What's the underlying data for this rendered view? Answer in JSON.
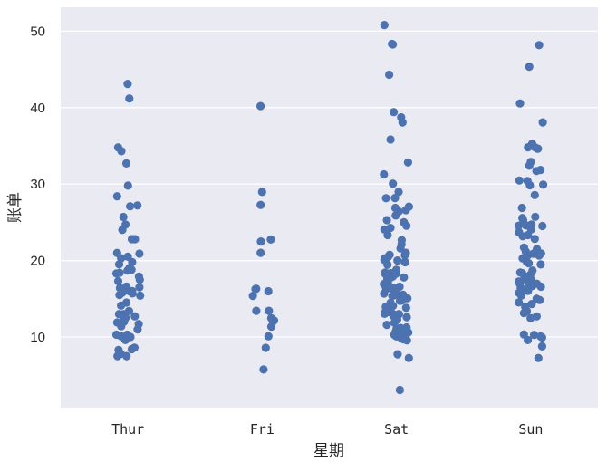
{
  "chart_data": {
    "type": "scatter",
    "subtype": "stripplot",
    "title": "",
    "xlabel": "星期",
    "ylabel": "账单",
    "categories": [
      "Thur",
      "Fri",
      "Sat",
      "Sun"
    ],
    "yticks": [
      10,
      20,
      30,
      40,
      50
    ],
    "ylim": [
      0.5,
      53.5
    ],
    "grid": true,
    "legend": null,
    "marker_color": "#4c72b0",
    "background_color": "#eaeaf2",
    "series": [
      {
        "name": "Thur",
        "values": [
          43.1,
          41.2,
          34.8,
          34.3,
          32.7,
          29.8,
          28.4,
          27.2,
          27.1,
          24.7,
          24.0,
          22.8,
          22.8,
          21.0,
          20.5,
          20.3,
          19.8,
          19.5,
          19.0,
          18.7,
          18.4,
          18.3,
          17.9,
          17.5,
          17.3,
          16.6,
          16.5,
          16.4,
          16.3,
          16.0,
          16.0,
          15.8,
          15.5,
          15.4,
          14.5,
          14.1,
          13.4,
          13.0,
          13.0,
          12.7,
          12.4,
          12.0,
          11.9,
          11.7,
          11.4,
          11.0,
          10.3,
          10.1,
          10.0,
          9.6,
          8.6,
          8.4,
          8.3,
          7.8,
          7.5,
          7.5,
          10.3,
          12.5,
          15.7,
          18.8,
          20.9,
          25.7
        ]
      },
      {
        "name": "Fri",
        "values": [
          40.2,
          28.97,
          27.28,
          22.75,
          22.49,
          21.01,
          16.32,
          16.27,
          15.98,
          15.38,
          13.42,
          13.42,
          12.46,
          12.16,
          12.03,
          11.35,
          10.09,
          8.58,
          5.75
        ]
      },
      {
        "name": "Sat",
        "values": [
          50.81,
          48.33,
          48.27,
          44.3,
          39.42,
          38.73,
          38.07,
          35.83,
          32.83,
          31.27,
          30.06,
          28.97,
          28.17,
          28.15,
          27.05,
          26.88,
          26.59,
          26.41,
          25.89,
          25.29,
          25.0,
          24.55,
          24.27,
          24.06,
          23.33,
          22.67,
          22.12,
          21.58,
          21.01,
          20.76,
          20.69,
          20.45,
          20.29,
          20.23,
          20.08,
          20.0,
          19.82,
          19.77,
          19.44,
          18.78,
          18.43,
          18.35,
          18.29,
          18.24,
          17.92,
          17.82,
          17.81,
          17.78,
          17.59,
          17.07,
          16.93,
          16.58,
          16.45,
          16.4,
          16.29,
          15.98,
          15.81,
          15.69,
          15.53,
          15.48,
          15.38,
          15.36,
          15.06,
          14.78,
          14.73,
          14.48,
          14.07,
          13.94,
          13.81,
          13.39,
          13.28,
          13.27,
          13.16,
          13.03,
          13.0,
          12.9,
          12.76,
          12.74,
          12.6,
          12.26,
          11.87,
          11.59,
          11.24,
          11.17,
          11.02,
          10.77,
          10.65,
          10.63,
          10.59,
          10.34,
          10.29,
          10.07,
          9.78,
          9.68,
          9.55,
          7.74,
          7.25,
          3.07
        ]
      },
      {
        "name": "Sun",
        "values": [
          48.17,
          45.35,
          40.55,
          38.07,
          35.26,
          34.83,
          34.81,
          34.65,
          34.63,
          32.9,
          32.4,
          31.85,
          31.71,
          30.46,
          30.4,
          29.85,
          29.93,
          28.55,
          26.88,
          25.71,
          25.56,
          25.28,
          24.71,
          24.59,
          24.55,
          24.52,
          24.08,
          23.68,
          23.33,
          23.17,
          22.82,
          21.7,
          21.5,
          21.16,
          20.92,
          20.9,
          20.69,
          20.65,
          20.29,
          19.81,
          19.65,
          19.49,
          18.69,
          18.43,
          18.35,
          18.15,
          17.92,
          17.89,
          17.51,
          17.46,
          17.26,
          16.99,
          16.97,
          16.82,
          16.66,
          16.58,
          16.45,
          16.31,
          16.21,
          16.04,
          15.77,
          15.42,
          15.01,
          14.83,
          14.52,
          14.31,
          13.94,
          13.39,
          13.13,
          12.69,
          12.46,
          10.33,
          10.27,
          10.07,
          9.94,
          9.6,
          8.77,
          7.25
        ]
      }
    ]
  },
  "axes": {
    "x_ticks": [
      "Thur",
      "Fri",
      "Sat",
      "Sun"
    ],
    "y_ticks": [
      "10",
      "20",
      "30",
      "40",
      "50"
    ],
    "xlabel": "星期",
    "ylabel": "账单"
  }
}
